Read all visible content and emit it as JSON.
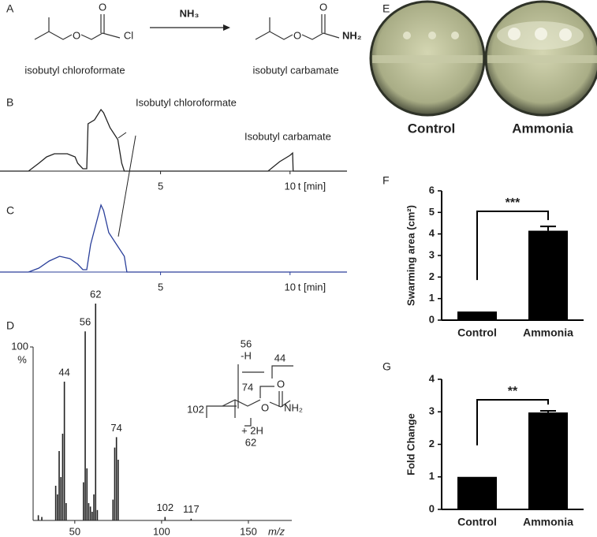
{
  "scheme": {
    "panel": "A",
    "reactant_atoms": [
      "O",
      "O",
      "Cl"
    ],
    "reagent": "NH₃",
    "product_atoms": [
      "O",
      "O",
      "NH₂"
    ],
    "reactant": "isobutyl chloroformate",
    "product": "isobutyl carbamate"
  },
  "photos": {
    "panel": "E",
    "labels": [
      "Control",
      "Ammonia"
    ]
  },
  "chart_data": [
    {
      "type": "line",
      "panel": "B",
      "color": "#222222",
      "x": [
        -1.2,
        -0.1,
        0.3,
        0.6,
        0.9,
        1.4,
        1.7,
        1.8,
        2.0,
        2.15,
        2.2,
        2.45,
        2.7,
        2.8,
        3.05,
        3.35,
        3.5,
        3.6,
        5,
        7,
        9.15,
        9.6,
        10.0,
        10.1,
        10.12,
        12.2
      ],
      "values": [
        0,
        0,
        10,
        18,
        22,
        22,
        18,
        10,
        3,
        3,
        60,
        65,
        78,
        74,
        55,
        40,
        10,
        0,
        0,
        0,
        0,
        12,
        20,
        23,
        0,
        0
      ],
      "xlim": [
        -1.2,
        12.2
      ],
      "xticks": [
        5,
        10
      ],
      "xlabel": "t [min]",
      "annotations": [
        "Isobutyl chloroformate",
        "Isobutyl carbamate"
      ]
    },
    {
      "type": "line",
      "panel": "C",
      "color": "#2a3f9a",
      "x": [
        -1.2,
        -0.1,
        0.3,
        0.7,
        1.1,
        1.5,
        1.8,
        2.0,
        2.15,
        2.3,
        2.5,
        2.7,
        2.8,
        3.0,
        3.3,
        3.6,
        3.7,
        12.2
      ],
      "values": [
        0,
        0,
        5,
        14,
        20,
        17,
        10,
        3,
        3,
        35,
        60,
        85,
        78,
        50,
        35,
        20,
        0,
        0
      ],
      "xlim": [
        -1.2,
        12.2
      ],
      "xticks": [
        5,
        10
      ],
      "xlabel": "t [min]"
    },
    {
      "type": "stem",
      "panel": "D",
      "color": "#222222",
      "x": [
        29,
        31,
        39,
        40,
        41,
        42,
        43,
        44,
        45,
        55,
        56,
        57,
        58,
        59,
        60,
        61,
        62,
        63,
        72,
        73,
        74,
        75,
        102,
        117
      ],
      "values": [
        3,
        2,
        20,
        15,
        40,
        25,
        50,
        80,
        10,
        22,
        109,
        30,
        10,
        8,
        5,
        15,
        125,
        6,
        12,
        42,
        48,
        35,
        2,
        1
      ],
      "peak_labels": [
        44,
        56,
        62,
        74,
        102,
        117
      ],
      "xlim": [
        26,
        175
      ],
      "xticks": [
        50,
        100,
        150
      ],
      "xlabel": "m/z",
      "ylim": [
        0,
        130
      ],
      "yticks": [
        100
      ],
      "ylabel": "%",
      "structure_labels": [
        "56",
        "-H",
        "44",
        "74",
        "O",
        "O",
        "NH₂",
        "102",
        "+ 2H",
        "62"
      ]
    },
    {
      "type": "bar",
      "panel": "F",
      "color": "#000000",
      "categories": [
        "Control",
        "Ammonia"
      ],
      "values": [
        0.4,
        4.15
      ],
      "errors": [
        0,
        0.2
      ],
      "ylim": [
        0,
        6
      ],
      "yticks": [
        0,
        1,
        2,
        3,
        4,
        5,
        6
      ],
      "ylabel": "Swarming area (cm²)",
      "significance": "***"
    },
    {
      "type": "bar",
      "panel": "G",
      "color": "#000000",
      "categories": [
        "Control",
        "Ammonia"
      ],
      "values": [
        1.0,
        2.98
      ],
      "errors": [
        0,
        0.05
      ],
      "ylim": [
        0,
        4
      ],
      "yticks": [
        0,
        1,
        2,
        3,
        4
      ],
      "ylabel": "Fold Change",
      "significance": "**"
    }
  ]
}
